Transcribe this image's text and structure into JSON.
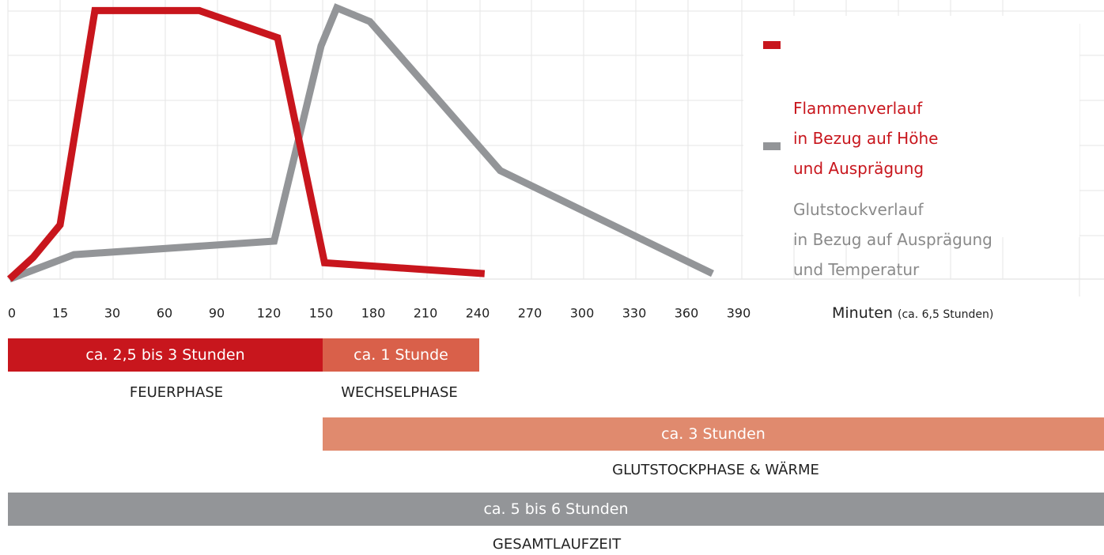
{
  "chart_data": {
    "type": "line",
    "x_label": "Minuten",
    "x_label_note": "(ca. 6,5 Stunden)",
    "xticks": [
      0,
      15,
      30,
      60,
      90,
      120,
      150,
      180,
      210,
      240,
      270,
      300,
      330,
      360,
      390
    ],
    "ylim": [
      0,
      100
    ],
    "series": [
      {
        "name": "Flammenverlauf\nin Bezug auf Höhe\nund Ausprägung",
        "color": "#c8161d",
        "x": [
          0,
          7,
          15,
          25,
          80,
          125,
          152,
          244
        ],
        "values": [
          0,
          8,
          20,
          99,
          99,
          89,
          6,
          2
        ]
      },
      {
        "name": "Glutstockverlauf\nin Bezug auf Ausprägung\nund Temperatur",
        "color": "#939598",
        "x": [
          0,
          19,
          123,
          150,
          159,
          178,
          253,
          375
        ],
        "values": [
          0,
          9,
          14,
          86,
          100,
          95,
          40,
          2
        ]
      }
    ]
  },
  "phases": [
    {
      "duration": "ca. 2,5 bis 3 Stunden",
      "name": "FEUERPHASE"
    },
    {
      "duration": "ca. 1 Stunde",
      "name": "WECHSELPHASE"
    },
    {
      "duration": "ca. 3 Stunden",
      "name": "GLUTSTOCKPHASE & WÄRME"
    },
    {
      "duration": "ca. 5 bis 6 Stunden",
      "name": "GESAMTLAUFZEIT"
    }
  ]
}
